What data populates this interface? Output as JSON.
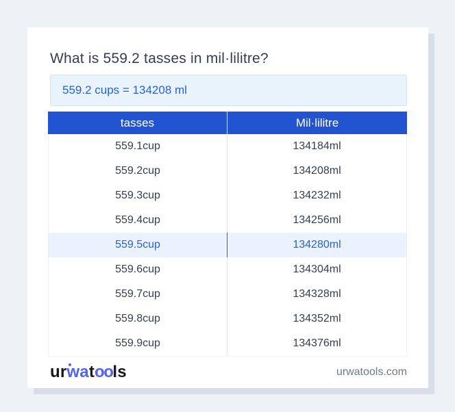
{
  "page": {
    "title": "What is 559.2 tasses in mil·lilitre?",
    "answer": "559.2 cups = 134208 ml"
  },
  "table": {
    "columns": {
      "cups": "tasses",
      "ml": "Mil·lilitre"
    },
    "highlight_index": 4,
    "rows": [
      {
        "cups": "559.1cup",
        "ml": "134184ml"
      },
      {
        "cups": "559.2cup",
        "ml": "134208ml"
      },
      {
        "cups": "559.3cup",
        "ml": "134232ml"
      },
      {
        "cups": "559.4cup",
        "ml": "134256ml"
      },
      {
        "cups": "559.5cup",
        "ml": "134280ml"
      },
      {
        "cups": "559.6cup",
        "ml": "134304ml"
      },
      {
        "cups": "559.7cup",
        "ml": "134328ml"
      },
      {
        "cups": "559.8cup",
        "ml": "134352ml"
      },
      {
        "cups": "559.9cup",
        "ml": "134376ml"
      }
    ]
  },
  "footer": {
    "logo": {
      "ur": "ur",
      "wa": "wa",
      "t": "t",
      "oo": "oo",
      "ls": "ls"
    },
    "site": "urwatools.com"
  },
  "colors": {
    "page_background": "#eef1f6",
    "card_background": "#ffffff",
    "card_shadow": "#d8dee9",
    "header_blue": "#2254d2",
    "answer_banner_bg": "#e9f3fc",
    "answer_banner_border": "#d6e4f4",
    "link_blue": "#2a62c9",
    "highlight_row_bg": "#e9f2fd",
    "highlight_divider": "#2f5fb8",
    "row_text": "#333e50",
    "title_text": "#333d4f",
    "footer_text": "#6f7885",
    "logo_blue": "#5263f1",
    "logo_black": "#16181d"
  }
}
